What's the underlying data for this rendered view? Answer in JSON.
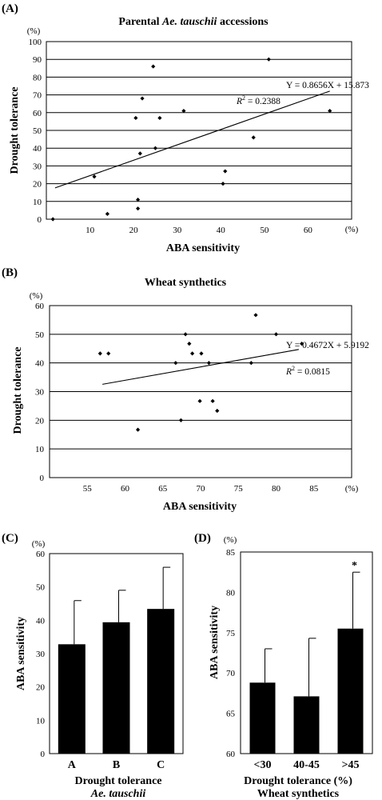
{
  "chart_data": [
    {
      "panel": "(A)",
      "type": "scatter",
      "title_prefix": "Parental ",
      "title_italic": "Ae. tauschii",
      "title_suffix": " accessions",
      "xlabel": "ABA sensitivity",
      "ylabel": "Drought tolerance",
      "xunit": "(%)",
      "yunit": "(%)",
      "xlim": [
        0,
        70
      ],
      "ylim": [
        0,
        100
      ],
      "xticks": [
        10,
        20,
        30,
        40,
        50,
        60
      ],
      "yticks": [
        0,
        10,
        20,
        30,
        40,
        50,
        60,
        70,
        80,
        90,
        100
      ],
      "grid": "horizontal",
      "points": [
        [
          1.5,
          0
        ],
        [
          11,
          24
        ],
        [
          14,
          3
        ],
        [
          20.5,
          57
        ],
        [
          21,
          11
        ],
        [
          21,
          6
        ],
        [
          21.5,
          37
        ],
        [
          22,
          68
        ],
        [
          24.5,
          86
        ],
        [
          25,
          40
        ],
        [
          26,
          57
        ],
        [
          31.5,
          61
        ],
        [
          40.5,
          20
        ],
        [
          41,
          27
        ],
        [
          47.5,
          46
        ],
        [
          51,
          90
        ],
        [
          65,
          61
        ]
      ],
      "trend": {
        "slope": 0.8656,
        "intercept": 15.873,
        "x": [
          2,
          65
        ]
      },
      "equation": "Y = 0.8656X + 15.873",
      "r2_label": "R",
      "r2_sup": "2",
      "r2_value": " = 0.2388"
    },
    {
      "panel": "(B)",
      "type": "scatter",
      "title": "Wheat synthetics",
      "xlabel": "ABA sensitivity",
      "ylabel": "Drought tolerance",
      "xunit": "(%)",
      "yunit": "(%)",
      "xlim": [
        50,
        90
      ],
      "ylim": [
        0,
        60
      ],
      "xticks": [
        55,
        60,
        65,
        70,
        75,
        80,
        85
      ],
      "yticks": [
        0,
        10,
        20,
        30,
        40,
        50,
        60
      ],
      "grid": "horizontal",
      "points": [
        [
          56.7,
          43.3
        ],
        [
          57.8,
          43.3
        ],
        [
          61.7,
          16.7
        ],
        [
          66.7,
          40
        ],
        [
          67.4,
          20
        ],
        [
          68,
          50
        ],
        [
          68.5,
          46.7
        ],
        [
          68.9,
          43.3
        ],
        [
          69.9,
          26.7
        ],
        [
          70.1,
          43.3
        ],
        [
          71.1,
          40
        ],
        [
          71.6,
          26.7
        ],
        [
          72.2,
          23.3
        ],
        [
          76.7,
          40
        ],
        [
          77.3,
          56.7
        ],
        [
          80,
          50
        ],
        [
          83.4,
          46.7
        ]
      ],
      "trend": {
        "slope": 0.4672,
        "intercept": 5.9192,
        "x": [
          57,
          83
        ]
      },
      "equation": "Y = 0.4672X + 5.9192",
      "r2_label": "R",
      "r2_sup": "2",
      "r2_value": " = 0.0815"
    },
    {
      "panel": "(C)",
      "type": "bar",
      "categories": [
        "A",
        "B",
        "C"
      ],
      "values": [
        32.8,
        39.4,
        43.4
      ],
      "errors": [
        13.1,
        9.6,
        12.5
      ],
      "ylabel": "ABA sensitivity",
      "yunit": "(%)",
      "xlabel": "Drought tolerance",
      "xsublabel": "Ae. tauschii",
      "ylim": [
        0,
        60
      ],
      "yticks": [
        0,
        10,
        20,
        30,
        40,
        50,
        60
      ],
      "bar_color": "#000000"
    },
    {
      "panel": "(D)",
      "type": "bar",
      "categories": [
        "<30",
        "40-45",
        ">45"
      ],
      "values": [
        68.8,
        67.1,
        75.5
      ],
      "errors": [
        4.2,
        7.2,
        7.0
      ],
      "annotations": [
        "",
        "",
        "*"
      ],
      "ylabel": "ABA sensitivity",
      "yunit": "(%)",
      "xlabel": "Drought tolerance (%)",
      "xsublabel": "Wheat synthetics",
      "ylim": [
        60,
        85
      ],
      "yticks": [
        60,
        65,
        70,
        75,
        80,
        85
      ],
      "bar_color": "#000000"
    }
  ]
}
